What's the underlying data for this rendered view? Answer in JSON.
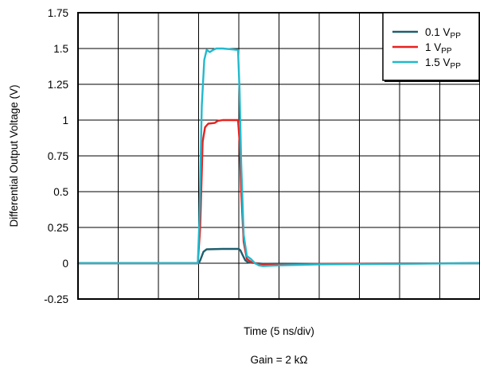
{
  "chart_data": {
    "type": "line",
    "title": "",
    "xlabel": "Time (5 ns/div)",
    "ylabel": "Differential Output Voltage (V)",
    "caption": "Gain = 2 kΩ",
    "ylim": [
      -0.25,
      1.75
    ],
    "yticks": [
      "1.75",
      "1.5",
      "1.25",
      "1",
      "0.75",
      "0.5",
      "0.25",
      "0",
      "-0.25"
    ],
    "x_divisions": 10,
    "x_unit": "ns",
    "grid": true,
    "legend_position": "top-right",
    "series": [
      {
        "name": "0.1 V",
        "name_sub": "PP",
        "color": "#1f5f6e",
        "x": [
          0,
          15,
          15.2,
          15.6,
          16,
          18,
          20,
          20.2,
          20.5,
          20.8,
          21.2,
          22,
          23,
          25,
          30,
          50
        ],
        "y": [
          0,
          0,
          0.02,
          0.08,
          0.097,
          0.1,
          0.1,
          0.09,
          0.055,
          0.02,
          0.005,
          0.001,
          -0.004,
          -0.006,
          -0.004,
          0
        ]
      },
      {
        "name": "1 V",
        "name_sub": "PP",
        "color": "#e8211e",
        "x": [
          0,
          14.9,
          15.2,
          15.5,
          15.8,
          16.2,
          17,
          17.4,
          18,
          19,
          19.9,
          20.1,
          20.3,
          20.6,
          21,
          21.5,
          22,
          23,
          25,
          30,
          50
        ],
        "y": [
          0,
          0,
          0.25,
          0.85,
          0.95,
          0.975,
          0.98,
          0.995,
          1.0,
          1.0,
          1.0,
          0.85,
          0.5,
          0.15,
          0.03,
          0.01,
          0.0,
          -0.01,
          -0.008,
          -0.005,
          0
        ]
      },
      {
        "name": "1.5 V",
        "name_sub": "PP",
        "color": "#21b9cc",
        "x": [
          0,
          14.9,
          15.1,
          15.4,
          15.7,
          16.0,
          16.4,
          16.8,
          17.2,
          18,
          19,
          19.9,
          20.1,
          20.3,
          20.6,
          21.0,
          21.5,
          22,
          22.5,
          23,
          25,
          30,
          50
        ],
        "y": [
          0,
          0,
          0.3,
          1.1,
          1.42,
          1.49,
          1.475,
          1.49,
          1.5,
          1.5,
          1.495,
          1.49,
          1.2,
          0.7,
          0.2,
          0.05,
          0.03,
          0.0,
          -0.015,
          -0.02,
          -0.015,
          -0.008,
          0
        ]
      }
    ]
  }
}
